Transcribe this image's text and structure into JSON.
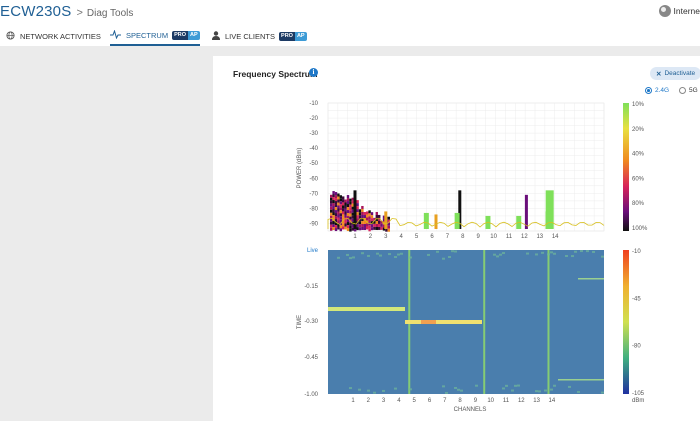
{
  "header": {
    "device_name": "ECW230S",
    "separator": ">",
    "tool_name": "Diag Tools",
    "internet_label": "Interne"
  },
  "tabs": [
    {
      "label": "NETWORK ACTIVITIES",
      "icon": "globe-icon",
      "active": false
    },
    {
      "label": "SPECTRUM",
      "icon": "pulse-icon",
      "active": true,
      "badge": [
        "PRO",
        "AP"
      ]
    },
    {
      "label": "LIVE CLIENTS",
      "icon": "user-icon",
      "active": false,
      "badge": [
        "PRO",
        "AP"
      ]
    }
  ],
  "panel": {
    "title": "Frequency Spectrum",
    "info_glyph": "i",
    "deactivate_label": "Deactivate",
    "band_options": [
      {
        "label": "2.4G",
        "selected": true
      },
      {
        "label": "5G",
        "selected": false
      }
    ]
  },
  "colors": {
    "accent": "#1f5f94",
    "waterfall_bg": "#4a7ead",
    "grid": "#e4e4e4"
  },
  "chart_data": [
    {
      "type": "heatmap",
      "ylabel": "POWER (dBm)",
      "y_ticks": [
        "-10",
        "-20",
        "-30",
        "-40",
        "-50",
        "-60",
        "-70",
        "-80",
        "-90"
      ],
      "ylim": [
        -95,
        -10
      ],
      "x_ticks": [
        "1",
        "2",
        "3",
        "4",
        "5",
        "6",
        "7",
        "8",
        "9",
        "10",
        "11",
        "12",
        "13",
        "14"
      ],
      "colorbar_ticks": [
        "10%",
        "20%",
        "40%",
        "60%",
        "80%",
        "100%"
      ],
      "colorbar_top": "#7fe05a",
      "peak_channels": [
        1,
        3,
        6,
        8,
        12,
        14
      ],
      "peaks_dbm": [
        -68,
        -82,
        -84,
        -68,
        -71,
        -68
      ]
    },
    {
      "type": "heatmap",
      "xlabel": "CHANNELS",
      "ylabel": "TIME",
      "y_ticks": [
        "Live",
        "-0.15",
        "-0.30",
        "-0.45",
        "-1.00"
      ],
      "x_ticks": [
        "1",
        "2",
        "3",
        "4",
        "5",
        "6",
        "7",
        "8",
        "9",
        "10",
        "11",
        "12",
        "13",
        "14"
      ],
      "colorbar_ticks": [
        "-10",
        "-45",
        "-80",
        "-105"
      ],
      "colorbar_unit": "dBm"
    }
  ]
}
